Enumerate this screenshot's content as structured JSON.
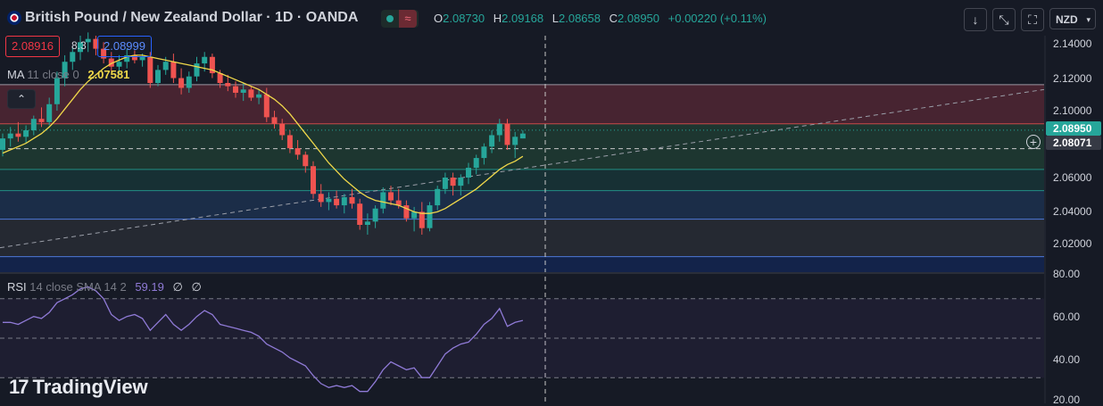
{
  "header": {
    "title": "British Pound / New Zealand Dollar · 1D · OANDA",
    "flag_icon": "gbp-nzd-flag-icon",
    "status_icon": "market-open-dot-icon",
    "wave_icon": "approx-wave-icon",
    "ohlc": {
      "o_label": "O",
      "o": "2.08730",
      "h_label": "H",
      "h": "2.09168",
      "l_label": "L",
      "l": "2.08658",
      "c_label": "C",
      "c": "2.08950",
      "change": "+0.00220 (+0.11%)"
    }
  },
  "trade": {
    "sell": "2.08916",
    "spread": "8.3",
    "buy": "2.08999"
  },
  "ma_legend": {
    "name": "MA",
    "params": "11 close 0",
    "value": "2.07581"
  },
  "rsi_legend": {
    "name": "RSI",
    "params": "14 close SMA 14 2",
    "value": "59.19",
    "extra1": "∅",
    "extra2": "∅"
  },
  "toolbar": {
    "collapse_glyph": "⌃",
    "down_glyph": "↓",
    "compress_glyph": "⤡",
    "fullscreen_glyph": "⛶",
    "currency": "NZD",
    "currency_caret": "▾"
  },
  "price_axis": {
    "labels": [
      "2.14000",
      "2.12000",
      "2.10000",
      "2.06000",
      "2.04000",
      "2.02000"
    ],
    "last_price": "2.08950",
    "crosshair_price": "2.08071"
  },
  "rsi_axis": {
    "labels": [
      "80.00",
      "60.00",
      "40.00",
      "20.00"
    ]
  },
  "logo": {
    "text": "TradingView",
    "mark": "17"
  },
  "colors": {
    "bg": "#161a25",
    "up": "#26a69a",
    "down": "#ef5350",
    "ma": "#f0d84a",
    "rsi": "#8f7ad6",
    "red_zone": "#4a2430",
    "green_zone": "#1f3a32"
  },
  "chart_data": {
    "type": "candlestick",
    "price_range": [
      2.005,
      2.15
    ],
    "rsi_range": [
      20,
      80
    ],
    "zones": [
      {
        "from": 2.096,
        "to": 2.12,
        "color": "#472431"
      },
      {
        "from": 2.068,
        "to": 2.096,
        "color": "#1d3630"
      },
      {
        "from": 2.055,
        "to": 2.068,
        "color": "#173034"
      },
      {
        "from": 2.0375,
        "to": 2.055,
        "color": "#1b2d48"
      },
      {
        "from": 2.0145,
        "to": 2.0375,
        "color": "#252932"
      },
      {
        "from": 2.005,
        "to": 2.0145,
        "color": "#13234a"
      }
    ],
    "zone_lines": [
      2.12,
      2.096,
      2.068,
      2.055,
      2.0375,
      2.0145
    ],
    "dotted_line": 2.0921,
    "crosshair_price": 2.08071,
    "trendline": [
      [
        2.02,
        0
      ],
      [
        2.117,
        1
      ]
    ],
    "candles": [
      [
        2.08,
        2.09,
        2.076,
        2.087
      ],
      [
        2.087,
        2.094,
        2.082,
        2.09
      ],
      [
        2.09,
        2.097,
        2.085,
        2.088
      ],
      [
        2.088,
        2.095,
        2.084,
        2.092
      ],
      [
        2.092,
        2.101,
        2.089,
        2.099
      ],
      [
        2.099,
        2.106,
        2.094,
        2.097
      ],
      [
        2.097,
        2.112,
        2.095,
        2.108
      ],
      [
        2.108,
        2.128,
        2.104,
        2.124
      ],
      [
        2.124,
        2.138,
        2.119,
        2.134
      ],
      [
        2.134,
        2.143,
        2.129,
        2.14
      ],
      [
        2.14,
        2.15,
        2.135,
        2.146
      ],
      [
        2.146,
        2.152,
        2.14,
        2.148
      ],
      [
        2.148,
        2.15,
        2.138,
        2.142
      ],
      [
        2.142,
        2.146,
        2.133,
        2.136
      ],
      [
        2.136,
        2.14,
        2.128,
        2.131
      ],
      [
        2.131,
        2.138,
        2.127,
        2.134
      ],
      [
        2.134,
        2.142,
        2.13,
        2.138
      ],
      [
        2.138,
        2.141,
        2.133,
        2.135
      ],
      [
        2.135,
        2.139,
        2.131,
        2.137
      ],
      [
        2.137,
        2.14,
        2.118,
        2.121
      ],
      [
        2.121,
        2.132,
        2.119,
        2.129
      ],
      [
        2.129,
        2.137,
        2.126,
        2.134
      ],
      [
        2.134,
        2.139,
        2.121,
        2.124
      ],
      [
        2.124,
        2.13,
        2.114,
        2.118
      ],
      [
        2.118,
        2.128,
        2.115,
        2.125
      ],
      [
        2.125,
        2.137,
        2.122,
        2.133
      ],
      [
        2.133,
        2.14,
        2.128,
        2.137
      ],
      [
        2.137,
        2.139,
        2.124,
        2.127
      ],
      [
        2.127,
        2.129,
        2.118,
        2.121
      ],
      [
        2.121,
        2.126,
        2.116,
        2.119
      ],
      [
        2.119,
        2.122,
        2.112,
        2.115
      ],
      [
        2.115,
        2.121,
        2.11,
        2.117
      ],
      [
        2.117,
        2.119,
        2.11,
        2.112
      ],
      [
        2.112,
        2.117,
        2.108,
        2.114
      ],
      [
        2.114,
        2.118,
        2.097,
        2.1
      ],
      [
        2.1,
        2.104,
        2.093,
        2.096
      ],
      [
        2.096,
        2.099,
        2.086,
        2.089
      ],
      [
        2.089,
        2.092,
        2.078,
        2.081
      ],
      [
        2.081,
        2.086,
        2.074,
        2.077
      ],
      [
        2.077,
        2.079,
        2.066,
        2.07
      ],
      [
        2.07,
        2.073,
        2.05,
        2.053
      ],
      [
        2.053,
        2.059,
        2.045,
        2.048
      ],
      [
        2.048,
        2.054,
        2.043,
        2.05
      ],
      [
        2.05,
        2.055,
        2.044,
        2.046
      ],
      [
        2.046,
        2.053,
        2.041,
        2.051
      ],
      [
        2.051,
        2.056,
        2.044,
        2.047
      ],
      [
        2.047,
        2.05,
        2.031,
        2.034
      ],
      [
        2.034,
        2.041,
        2.028,
        2.036
      ],
      [
        2.036,
        2.046,
        2.032,
        2.044
      ],
      [
        2.044,
        2.057,
        2.041,
        2.054
      ],
      [
        2.054,
        2.058,
        2.046,
        2.049
      ],
      [
        2.049,
        2.056,
        2.044,
        2.046
      ],
      [
        2.046,
        2.049,
        2.036,
        2.038
      ],
      [
        2.038,
        2.045,
        2.03,
        2.042
      ],
      [
        2.042,
        2.048,
        2.028,
        2.032
      ],
      [
        2.032,
        2.048,
        2.03,
        2.046
      ],
      [
        2.046,
        2.058,
        2.043,
        2.056
      ],
      [
        2.056,
        2.066,
        2.053,
        2.063
      ],
      [
        2.063,
        2.066,
        2.052,
        2.058
      ],
      [
        2.058,
        2.065,
        2.052,
        2.063
      ],
      [
        2.063,
        2.072,
        2.059,
        2.069
      ],
      [
        2.069,
        2.077,
        2.065,
        2.075
      ],
      [
        2.075,
        2.084,
        2.071,
        2.082
      ],
      [
        2.082,
        2.092,
        2.078,
        2.089
      ],
      [
        2.089,
        2.099,
        2.085,
        2.096
      ],
      [
        2.096,
        2.099,
        2.08,
        2.083
      ],
      [
        2.083,
        2.091,
        2.075,
        2.088
      ],
      [
        2.087,
        2.092,
        2.087,
        2.09
      ]
    ],
    "ma": [
      2.078,
      2.08,
      2.082,
      2.084,
      2.087,
      2.09,
      2.094,
      2.099,
      2.105,
      2.111,
      2.117,
      2.122,
      2.126,
      2.13,
      2.133,
      2.135,
      2.137,
      2.138,
      2.138,
      2.137,
      2.136,
      2.135,
      2.134,
      2.133,
      2.132,
      2.131,
      2.13,
      2.129,
      2.127,
      2.125,
      2.123,
      2.121,
      2.119,
      2.117,
      2.114,
      2.111,
      2.107,
      2.102,
      2.096,
      2.09,
      2.084,
      2.078,
      2.072,
      2.067,
      2.062,
      2.058,
      2.054,
      2.051,
      2.049,
      2.048,
      2.047,
      2.046,
      2.044,
      2.042,
      2.041,
      2.041,
      2.042,
      2.044,
      2.047,
      2.05,
      2.053,
      2.056,
      2.06,
      2.064,
      2.068,
      2.071,
      2.073,
      2.076
    ],
    "rsi": [
      58,
      58,
      57,
      59,
      61,
      60,
      63,
      68,
      70,
      72,
      75,
      76,
      74,
      70,
      62,
      59,
      61,
      62,
      60,
      54,
      58,
      62,
      57,
      54,
      57,
      61,
      64,
      62,
      57,
      56,
      55,
      54,
      53,
      51,
      47,
      45,
      43,
      40,
      38,
      36,
      31,
      27,
      25,
      26,
      25,
      26,
      23,
      23,
      28,
      34,
      38,
      36,
      34,
      35,
      30,
      30,
      36,
      42,
      45,
      47,
      48,
      52,
      57,
      60,
      65,
      56,
      58,
      59
    ]
  }
}
